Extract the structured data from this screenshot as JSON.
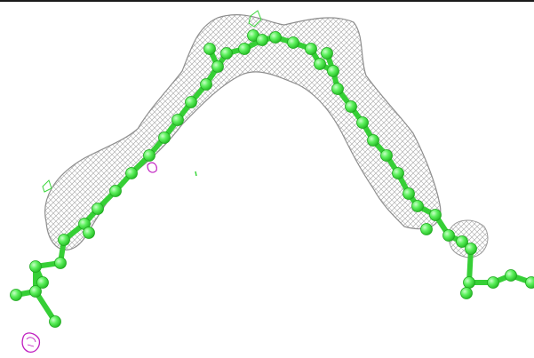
{
  "scene": {
    "subject": "ligand-ball-and-stick-in-density-mesh",
    "colors": {
      "background": "#ffffff",
      "frame": "#1a1a1a",
      "atom": "#4fe64f",
      "atom_highlight": "#c9ffc9",
      "bond": "#3ad63a",
      "density_mesh": "#a0a0a0",
      "difference_mesh": "#c020c0"
    }
  }
}
